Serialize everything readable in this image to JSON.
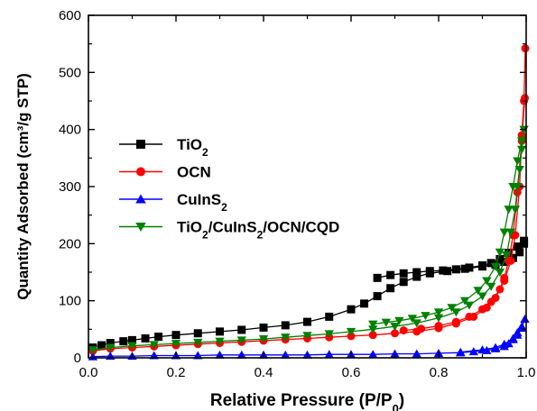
{
  "chart_data": {
    "type": "scatter",
    "xlabel": "Relative Pressure (P/P",
    "xlabel_sub": "0",
    "xlabel_end": ")",
    "ylabel": "Quantity Adsorbed (cm³/g STP)",
    "xlim": [
      0.0,
      1.0
    ],
    "ylim": [
      0,
      600
    ],
    "x_ticks": [
      "0.0",
      "0.2",
      "0.4",
      "0.6",
      "0.8",
      "1.0"
    ],
    "y_ticks": [
      "0",
      "100",
      "200",
      "300",
      "400",
      "500",
      "600"
    ],
    "grid": false,
    "legend_position": "center-left",
    "series": [
      {
        "name": "TiO",
        "name_sub": "2",
        "name_rest": "",
        "color": "#000000",
        "marker": "square",
        "adsorption": [
          [
            0.01,
            18
          ],
          [
            0.03,
            22
          ],
          [
            0.05,
            26
          ],
          [
            0.08,
            29
          ],
          [
            0.1,
            31
          ],
          [
            0.13,
            34
          ],
          [
            0.16,
            37
          ],
          [
            0.2,
            40
          ],
          [
            0.25,
            43
          ],
          [
            0.3,
            46
          ],
          [
            0.35,
            49
          ],
          [
            0.4,
            53
          ],
          [
            0.45,
            57
          ],
          [
            0.5,
            63
          ],
          [
            0.55,
            72
          ],
          [
            0.6,
            85
          ],
          [
            0.63,
            95
          ],
          [
            0.66,
            108
          ],
          [
            0.69,
            122
          ],
          [
            0.72,
            133
          ],
          [
            0.75,
            142
          ],
          [
            0.78,
            148
          ],
          [
            0.82,
            152
          ],
          [
            0.86,
            156
          ],
          [
            0.9,
            160
          ],
          [
            0.93,
            163
          ],
          [
            0.95,
            168
          ],
          [
            0.97,
            175
          ],
          [
            0.985,
            185
          ],
          [
            0.995,
            200
          ]
        ],
        "desorption": [
          [
            0.995,
            205
          ],
          [
            0.98,
            195
          ],
          [
            0.96,
            184
          ],
          [
            0.94,
            173
          ],
          [
            0.92,
            166
          ],
          [
            0.9,
            162
          ],
          [
            0.87,
            158
          ],
          [
            0.84,
            155
          ],
          [
            0.81,
            153
          ],
          [
            0.78,
            152
          ],
          [
            0.75,
            150
          ],
          [
            0.72,
            148
          ],
          [
            0.69,
            145
          ],
          [
            0.66,
            140
          ]
        ]
      },
      {
        "name": "OCN",
        "name_sub": "",
        "name_rest": "",
        "color": "#ff0000",
        "marker": "circle",
        "adsorption": [
          [
            0.01,
            12
          ],
          [
            0.05,
            16
          ],
          [
            0.1,
            18
          ],
          [
            0.15,
            20
          ],
          [
            0.2,
            22
          ],
          [
            0.25,
            24
          ],
          [
            0.3,
            26
          ],
          [
            0.35,
            28
          ],
          [
            0.4,
            30
          ],
          [
            0.45,
            32
          ],
          [
            0.5,
            34
          ],
          [
            0.55,
            36
          ],
          [
            0.6,
            38
          ],
          [
            0.65,
            40
          ],
          [
            0.7,
            43
          ],
          [
            0.75,
            46
          ],
          [
            0.8,
            52
          ],
          [
            0.84,
            60
          ],
          [
            0.88,
            72
          ],
          [
            0.91,
            88
          ],
          [
            0.93,
            105
          ],
          [
            0.95,
            135
          ],
          [
            0.965,
            170
          ],
          [
            0.975,
            215
          ],
          [
            0.985,
            300
          ],
          [
            0.99,
            390
          ],
          [
            0.995,
            450
          ],
          [
            0.998,
            542
          ]
        ],
        "desorption": [
          [
            0.997,
            455
          ],
          [
            0.99,
            380
          ],
          [
            0.98,
            290
          ],
          [
            0.97,
            215
          ],
          [
            0.96,
            170
          ],
          [
            0.95,
            140
          ],
          [
            0.94,
            120
          ],
          [
            0.92,
            98
          ],
          [
            0.9,
            85
          ],
          [
            0.87,
            72
          ],
          [
            0.84,
            63
          ],
          [
            0.8,
            56
          ],
          [
            0.76,
            51
          ],
          [
            0.72,
            48
          ]
        ]
      },
      {
        "name": "CuInS",
        "name_sub": "2",
        "name_rest": "",
        "color": "#0000ff",
        "marker": "triangle-up",
        "adsorption": [
          [
            0.01,
            2
          ],
          [
            0.05,
            3
          ],
          [
            0.1,
            3
          ],
          [
            0.15,
            4
          ],
          [
            0.2,
            4
          ],
          [
            0.25,
            4
          ],
          [
            0.3,
            5
          ],
          [
            0.35,
            5
          ],
          [
            0.4,
            5
          ],
          [
            0.45,
            5
          ],
          [
            0.5,
            5
          ],
          [
            0.55,
            6
          ],
          [
            0.6,
            6
          ],
          [
            0.65,
            6
          ],
          [
            0.7,
            7
          ],
          [
            0.75,
            7
          ],
          [
            0.8,
            8
          ],
          [
            0.85,
            9
          ],
          [
            0.88,
            11
          ],
          [
            0.91,
            13
          ],
          [
            0.93,
            16
          ],
          [
            0.95,
            20
          ],
          [
            0.96,
            25
          ],
          [
            0.97,
            32
          ],
          [
            0.98,
            40
          ],
          [
            0.99,
            52
          ],
          [
            0.997,
            68
          ]
        ],
        "desorption": [
          [
            0.99,
            55
          ],
          [
            0.98,
            44
          ],
          [
            0.97,
            34
          ],
          [
            0.95,
            24
          ],
          [
            0.93,
            18
          ],
          [
            0.9,
            14
          ],
          [
            0.85,
            10
          ]
        ]
      },
      {
        "name": "TiO",
        "name_sub": "2",
        "name_rest": "/CuInS",
        "name_sub2": "2",
        "name_rest2": "/OCN/CQD",
        "color": "#008000",
        "marker": "triangle-down",
        "adsorption": [
          [
            0.01,
            14
          ],
          [
            0.05,
            18
          ],
          [
            0.1,
            21
          ],
          [
            0.15,
            23
          ],
          [
            0.2,
            25
          ],
          [
            0.25,
            27
          ],
          [
            0.3,
            29
          ],
          [
            0.35,
            31
          ],
          [
            0.4,
            33
          ],
          [
            0.45,
            36
          ],
          [
            0.5,
            39
          ],
          [
            0.55,
            42
          ],
          [
            0.6,
            46
          ],
          [
            0.65,
            50
          ],
          [
            0.7,
            55
          ],
          [
            0.75,
            61
          ],
          [
            0.8,
            70
          ],
          [
            0.84,
            80
          ],
          [
            0.87,
            92
          ],
          [
            0.9,
            108
          ],
          [
            0.92,
            125
          ],
          [
            0.94,
            150
          ],
          [
            0.955,
            180
          ],
          [
            0.965,
            220
          ],
          [
            0.975,
            260
          ],
          [
            0.98,
            300
          ],
          [
            0.985,
            330
          ],
          [
            0.99,
            365
          ],
          [
            0.995,
            400
          ]
        ],
        "desorption": [
          [
            0.99,
            380
          ],
          [
            0.98,
            345
          ],
          [
            0.97,
            300
          ],
          [
            0.96,
            260
          ],
          [
            0.95,
            220
          ],
          [
            0.94,
            185
          ],
          [
            0.93,
            160
          ],
          [
            0.91,
            135
          ],
          [
            0.89,
            118
          ],
          [
            0.86,
            100
          ],
          [
            0.83,
            88
          ],
          [
            0.8,
            80
          ],
          [
            0.77,
            74
          ],
          [
            0.74,
            69
          ],
          [
            0.71,
            65
          ],
          [
            0.68,
            62
          ],
          [
            0.65,
            59
          ]
        ]
      }
    ]
  }
}
